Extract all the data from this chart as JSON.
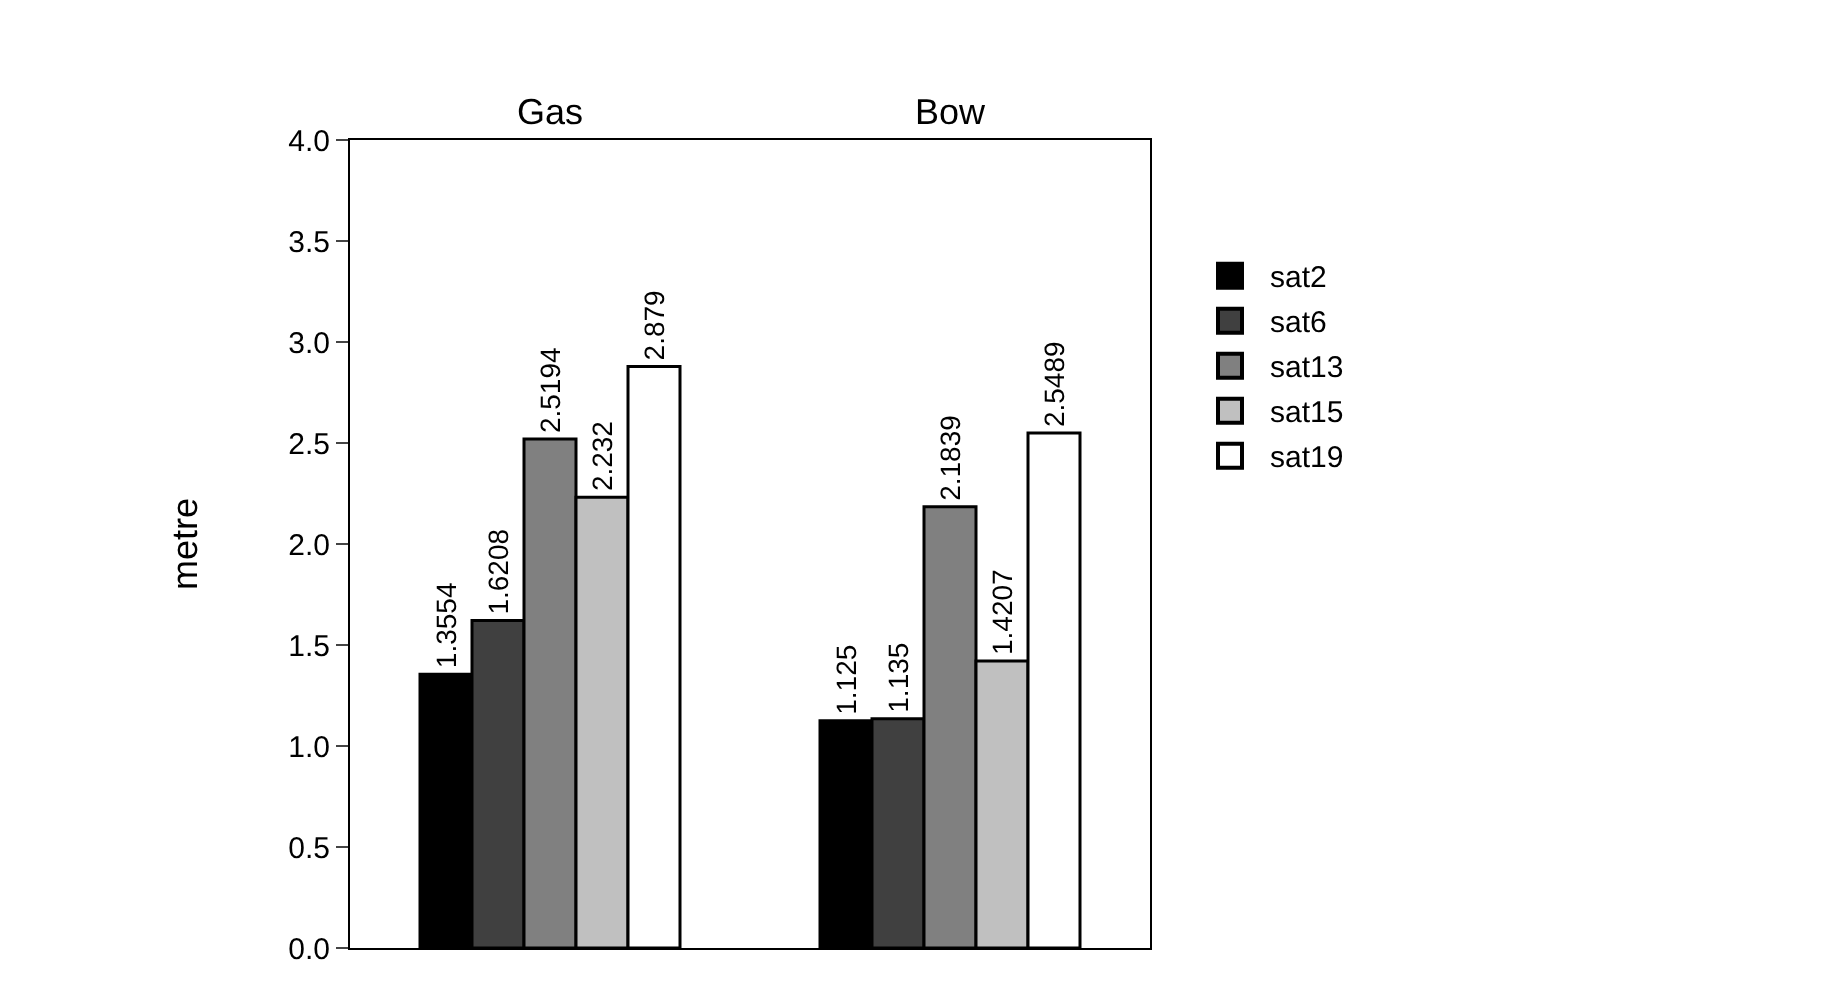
{
  "chart_data": {
    "type": "bar",
    "categories": [
      "Gas",
      "Bow"
    ],
    "ylabel": "metre",
    "series": [
      {
        "name": "sat2",
        "color": "#000000",
        "values": [
          1.3554,
          1.125
        ]
      },
      {
        "name": "sat6",
        "color": "#404040",
        "values": [
          1.6208,
          1.135
        ]
      },
      {
        "name": "sat13",
        "color": "#808080",
        "values": [
          2.5194,
          2.1839
        ]
      },
      {
        "name": "sat15",
        "color": "#c0c0c0",
        "values": [
          2.232,
          1.4207
        ]
      },
      {
        "name": "sat19",
        "color": "#ffffff",
        "values": [
          2.879,
          2.5489
        ]
      }
    ],
    "ylim": [
      0,
      4
    ],
    "yticks": [
      {
        "value": 0,
        "label": "0.0"
      },
      0.5,
      {
        "value": 1,
        "label": "1.0"
      },
      1.5,
      {
        "value": 2,
        "label": "2.0"
      },
      2.5,
      {
        "value": 3,
        "label": "3.0"
      },
      3.5,
      {
        "value": 4,
        "label": "4.0"
      }
    ],
    "data_labels": true,
    "legend": "right"
  }
}
